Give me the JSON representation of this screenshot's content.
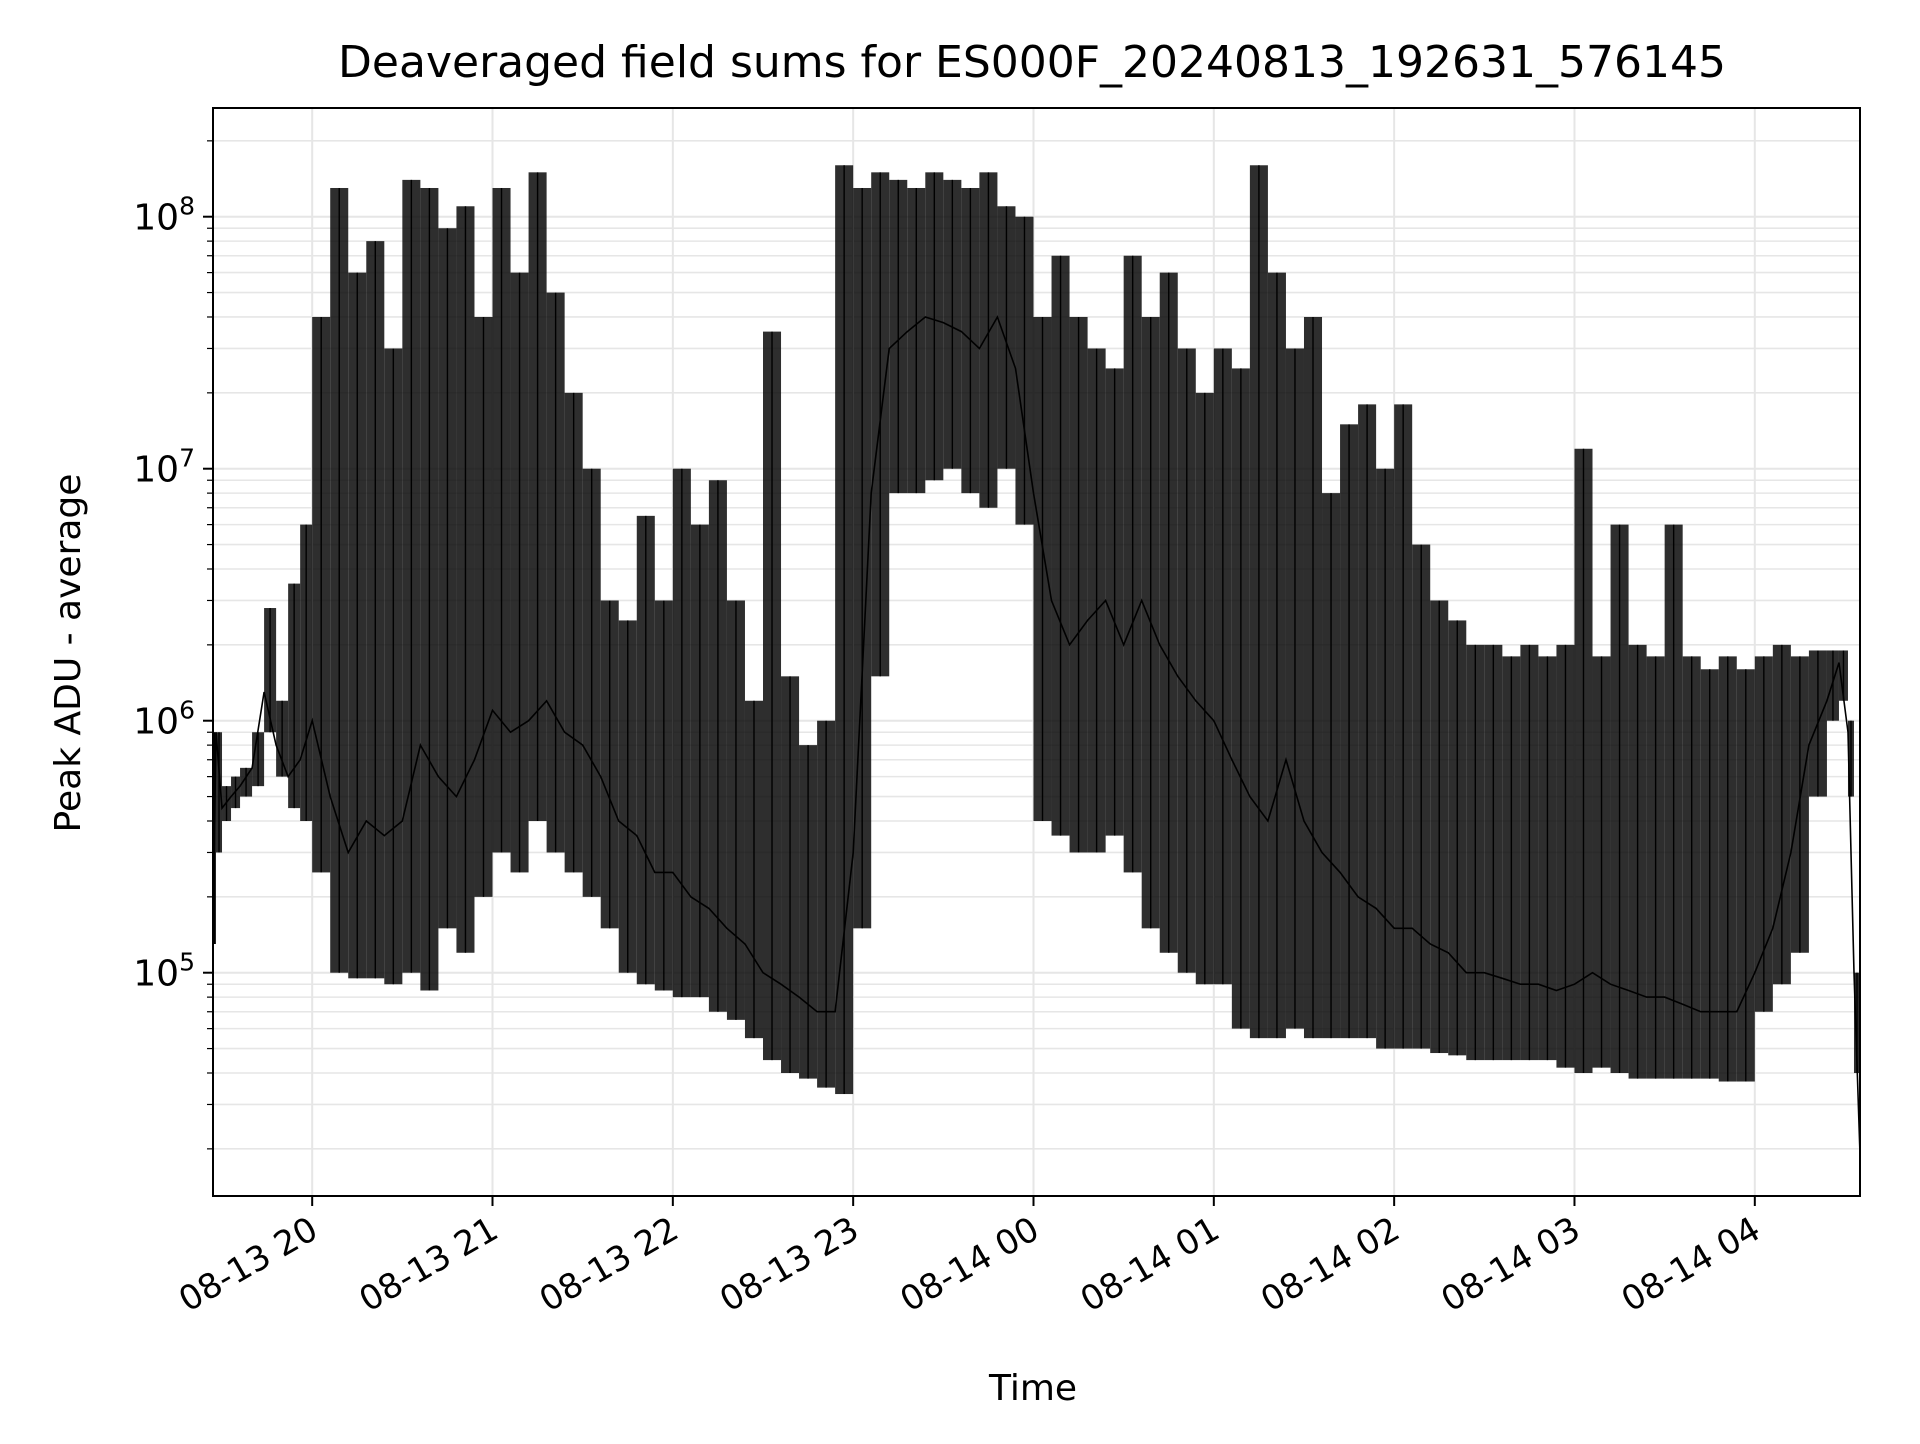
{
  "chart_data": {
    "type": "line",
    "title": "Deaveraged field sums for ES000F_20240813_192631_576145",
    "xlabel": "Time",
    "ylabel": "Peak ADU - average",
    "yscale": "log",
    "grid": true,
    "legend": "none",
    "line_color": "#000000",
    "grid_color": "#e6e6e6",
    "xlim": [
      "2024-08-13 19:27",
      "2024-08-14 04:35"
    ],
    "ylim": [
      13000,
      270000000
    ],
    "x_ticks": [
      {
        "value": "2024-08-13 20:00",
        "label": "08-13 20"
      },
      {
        "value": "2024-08-13 21:00",
        "label": "08-13 21"
      },
      {
        "value": "2024-08-13 22:00",
        "label": "08-13 22"
      },
      {
        "value": "2024-08-13 23:00",
        "label": "08-13 23"
      },
      {
        "value": "2024-08-14 00:00",
        "label": "08-14 00"
      },
      {
        "value": "2024-08-14 01:00",
        "label": "08-14 01"
      },
      {
        "value": "2024-08-14 02:00",
        "label": "08-14 02"
      },
      {
        "value": "2024-08-14 03:00",
        "label": "08-14 03"
      },
      {
        "value": "2024-08-14 04:00",
        "label": "08-14 04"
      }
    ],
    "y_ticks": [
      {
        "value": 100000,
        "base": "10",
        "exp": "5"
      },
      {
        "value": 1000000,
        "base": "10",
        "exp": "6"
      },
      {
        "value": 10000000,
        "base": "10",
        "exp": "7"
      },
      {
        "value": 100000000,
        "base": "10",
        "exp": "8"
      }
    ],
    "series": [
      {
        "x": [
          "2024-08-13 19:27",
          "2024-08-13 19:28",
          "2024-08-13 19:30",
          "2024-08-13 19:33",
          "2024-08-13 19:36",
          "2024-08-13 19:40",
          "2024-08-13 19:44",
          "2024-08-13 19:48",
          "2024-08-13 19:52",
          "2024-08-13 19:56",
          "2024-08-13 20:00",
          "2024-08-13 20:06",
          "2024-08-13 20:12",
          "2024-08-13 20:18",
          "2024-08-13 20:24",
          "2024-08-13 20:30",
          "2024-08-13 20:36",
          "2024-08-13 20:42",
          "2024-08-13 20:48",
          "2024-08-13 20:54",
          "2024-08-13 21:00",
          "2024-08-13 21:06",
          "2024-08-13 21:12",
          "2024-08-13 21:18",
          "2024-08-13 21:24",
          "2024-08-13 21:30",
          "2024-08-13 21:36",
          "2024-08-13 21:42",
          "2024-08-13 21:48",
          "2024-08-13 21:54",
          "2024-08-13 22:00",
          "2024-08-13 22:06",
          "2024-08-13 22:12",
          "2024-08-13 22:18",
          "2024-08-13 22:24",
          "2024-08-13 22:30",
          "2024-08-13 22:36",
          "2024-08-13 22:42",
          "2024-08-13 22:48",
          "2024-08-13 22:54",
          "2024-08-13 23:00",
          "2024-08-13 23:06",
          "2024-08-13 23:12",
          "2024-08-13 23:18",
          "2024-08-13 23:24",
          "2024-08-13 23:30",
          "2024-08-13 23:36",
          "2024-08-13 23:42",
          "2024-08-13 23:48",
          "2024-08-13 23:54",
          "2024-08-14 00:00",
          "2024-08-14 00:06",
          "2024-08-14 00:12",
          "2024-08-14 00:18",
          "2024-08-14 00:24",
          "2024-08-14 00:30",
          "2024-08-14 00:36",
          "2024-08-14 00:42",
          "2024-08-14 00:48",
          "2024-08-14 00:54",
          "2024-08-14 01:00",
          "2024-08-14 01:06",
          "2024-08-14 01:12",
          "2024-08-14 01:18",
          "2024-08-14 01:24",
          "2024-08-14 01:30",
          "2024-08-14 01:36",
          "2024-08-14 01:42",
          "2024-08-14 01:48",
          "2024-08-14 01:54",
          "2024-08-14 02:00",
          "2024-08-14 02:06",
          "2024-08-14 02:12",
          "2024-08-14 02:18",
          "2024-08-14 02:24",
          "2024-08-14 02:30",
          "2024-08-14 02:36",
          "2024-08-14 02:42",
          "2024-08-14 02:48",
          "2024-08-14 02:54",
          "2024-08-14 03:00",
          "2024-08-14 03:06",
          "2024-08-14 03:12",
          "2024-08-14 03:18",
          "2024-08-14 03:24",
          "2024-08-14 03:30",
          "2024-08-14 03:36",
          "2024-08-14 03:42",
          "2024-08-14 03:48",
          "2024-08-14 03:54",
          "2024-08-14 04:00",
          "2024-08-14 04:06",
          "2024-08-14 04:12",
          "2024-08-14 04:18",
          "2024-08-14 04:24",
          "2024-08-14 04:28",
          "2024-08-14 04:31",
          "2024-08-14 04:33",
          "2024-08-14 04:35"
        ],
        "y": [
          130000,
          900000,
          450000,
          500000,
          550000,
          650000,
          1300000,
          800000,
          600000,
          700000,
          1000000,
          500000,
          300000,
          400000,
          350000,
          400000,
          800000,
          600000,
          500000,
          700000,
          1100000,
          900000,
          1000000,
          1200000,
          900000,
          800000,
          600000,
          400000,
          350000,
          250000,
          250000,
          200000,
          180000,
          150000,
          130000,
          100000,
          90000,
          80000,
          70000,
          70000,
          300000,
          8000000,
          30000000,
          35000000,
          40000000,
          38000000,
          35000000,
          30000000,
          40000000,
          25000000,
          8000000,
          3000000,
          2000000,
          2500000,
          3000000,
          2000000,
          3000000,
          2000000,
          1500000,
          1200000,
          1000000,
          700000,
          500000,
          400000,
          700000,
          400000,
          300000,
          250000,
          200000,
          180000,
          150000,
          150000,
          130000,
          120000,
          100000,
          100000,
          95000,
          90000,
          90000,
          85000,
          90000,
          100000,
          90000,
          85000,
          80000,
          80000,
          75000,
          70000,
          70000,
          70000,
          100000,
          150000,
          300000,
          800000,
          1200000,
          1700000,
          900000,
          100000,
          19000
        ],
        "y_low": [
          130000,
          300000,
          400000,
          450000,
          500000,
          550000,
          900000,
          600000,
          450000,
          400000,
          250000,
          100000,
          95000,
          95000,
          90000,
          100000,
          85000,
          150000,
          120000,
          200000,
          300000,
          250000,
          400000,
          300000,
          250000,
          200000,
          150000,
          100000,
          90000,
          85000,
          80000,
          80000,
          70000,
          65000,
          55000,
          45000,
          40000,
          38000,
          35000,
          33000,
          150000,
          1500000,
          8000000,
          8000000,
          9000000,
          10000000,
          8000000,
          7000000,
          10000000,
          6000000,
          400000,
          350000,
          300000,
          300000,
          350000,
          250000,
          150000,
          120000,
          100000,
          90000,
          90000,
          60000,
          55000,
          55000,
          60000,
          55000,
          55000,
          55000,
          55000,
          50000,
          50000,
          50000,
          48000,
          47000,
          45000,
          45000,
          45000,
          45000,
          45000,
          42000,
          40000,
          42000,
          40000,
          38000,
          38000,
          38000,
          38000,
          38000,
          37000,
          37000,
          70000,
          90000,
          120000,
          500000,
          1000000,
          1200000,
          500000,
          40000,
          19000
        ],
        "y_high": [
          900000,
          900000,
          550000,
          600000,
          650000,
          900000,
          2800000,
          1200000,
          3500000,
          6000000,
          40000000,
          130000000,
          60000000,
          80000000,
          30000000,
          140000000,
          130000000,
          90000000,
          110000000,
          40000000,
          130000000,
          60000000,
          150000000,
          50000000,
          20000000,
          10000000,
          3000000,
          2500000,
          6500000,
          3000000,
          10000000,
          6000000,
          9000000,
          3000000,
          1200000,
          35000000,
          1500000,
          800000,
          1000000,
          160000000,
          130000000,
          150000000,
          140000000,
          130000000,
          150000000,
          140000000,
          130000000,
          150000000,
          110000000,
          100000000,
          40000000,
          70000000,
          40000000,
          30000000,
          25000000,
          70000000,
          40000000,
          60000000,
          30000000,
          20000000,
          30000000,
          25000000,
          160000000,
          60000000,
          30000000,
          40000000,
          8000000,
          15000000,
          18000000,
          10000000,
          18000000,
          5000000,
          3000000,
          2500000,
          2000000,
          2000000,
          1800000,
          2000000,
          1800000,
          2000000,
          12000000,
          1800000,
          6000000,
          2000000,
          1800000,
          6000000,
          1800000,
          1600000,
          1800000,
          1600000,
          1800000,
          2000000,
          1800000,
          1900000,
          1900000,
          1900000,
          1000000,
          100000,
          19000
        ]
      }
    ]
  }
}
